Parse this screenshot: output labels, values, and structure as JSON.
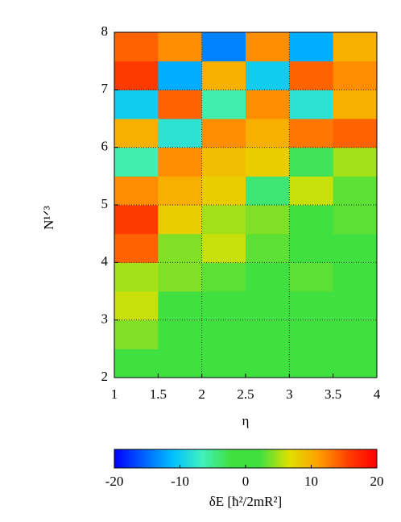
{
  "chart_data": {
    "type": "heatmap",
    "xlabel": "η",
    "ylabel": "N¹ᐟ³",
    "colorbar_label": "δE [ħ²/2mR²]",
    "xlim": [
      1,
      4
    ],
    "ylim": [
      2,
      8
    ],
    "xticks": [
      1,
      1.5,
      2,
      2.5,
      3,
      3.5,
      4
    ],
    "yticks": [
      2,
      3,
      4,
      5,
      6,
      7,
      8
    ],
    "grid": true,
    "x_edges": [
      1,
      1.5,
      2,
      2.5,
      3,
      3.5,
      4
    ],
    "y_edges": [
      2,
      2.5,
      3,
      3.5,
      4,
      4.5,
      5,
      5.5,
      6,
      6.5,
      7,
      7.5,
      8
    ],
    "values": [
      [
        2,
        1,
        1,
        1,
        0,
        1
      ],
      [
        4,
        2,
        1,
        1,
        1,
        0
      ],
      [
        6,
        2,
        1,
        2,
        1,
        1
      ],
      [
        5,
        4,
        3,
        2,
        3,
        2
      ],
      [
        14,
        4,
        6,
        3,
        2,
        1
      ],
      [
        16,
        8,
        5,
        4,
        2,
        3
      ],
      [
        12,
        10,
        8,
        -4,
        6,
        3
      ],
      [
        -6,
        12,
        9,
        8,
        -3,
        5
      ],
      [
        10,
        -8,
        12,
        10,
        13,
        14
      ],
      [
        -10,
        14,
        -6,
        12,
        -8,
        10
      ],
      [
        16,
        -12,
        10,
        -10,
        14,
        12
      ],
      [
        14,
        12,
        -14,
        12,
        -12,
        10
      ]
    ],
    "clim": [
      -20,
      20
    ],
    "cticks": [
      -20,
      -10,
      0,
      10,
      20
    ],
    "colorscale": [
      "#0000ff",
      "#0060ff",
      "#00c0ff",
      "#40f0c0",
      "#40e040",
      "#40e040",
      "#e0e000",
      "#ffa000",
      "#ff4000",
      "#ff0000"
    ]
  }
}
